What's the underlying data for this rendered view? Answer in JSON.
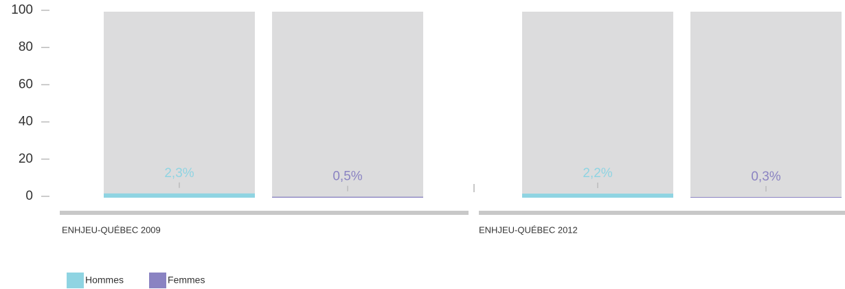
{
  "chart_data": {
    "type": "bar",
    "categories": [
      "ENHJEU-QUÉBEC 2009",
      "ENHJEU-QUÉBEC 2012"
    ],
    "series": [
      {
        "name": "Hommes",
        "color": "#8fd4e2",
        "values": [
          2.3,
          2.2
        ],
        "value_labels": [
          "2,3%",
          "2,2%"
        ]
      },
      {
        "name": "Femmes",
        "color": "#8a83c2",
        "values": [
          0.5,
          0.3
        ],
        "value_labels": [
          "0,5%",
          "0,3%"
        ]
      }
    ],
    "ylim": [
      0,
      100
    ],
    "yticks": [
      0,
      20,
      40,
      60,
      80,
      100
    ]
  }
}
